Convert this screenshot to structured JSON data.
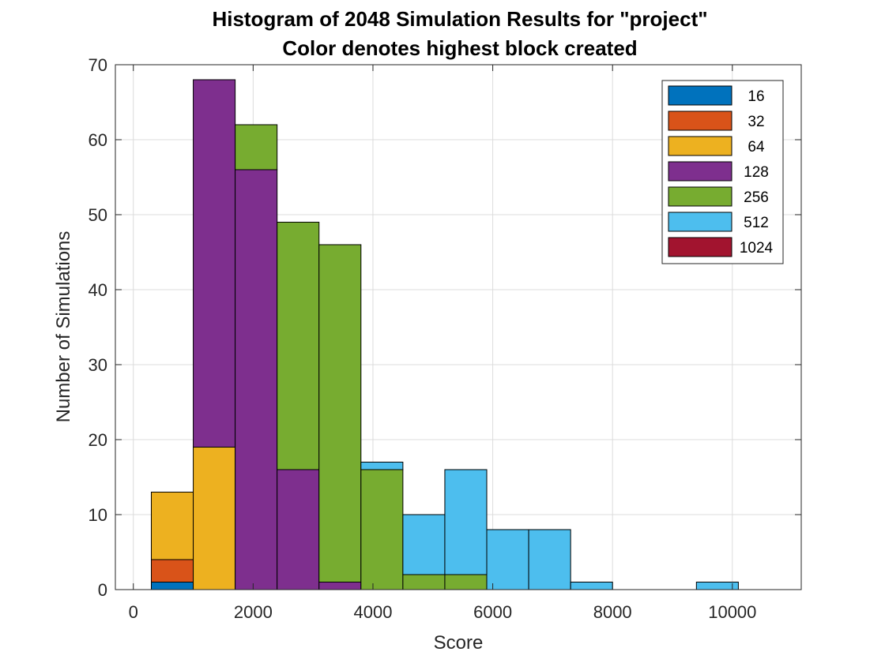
{
  "chart_data": {
    "type": "bar",
    "stacked": true,
    "title": "Histogram of 2048 Simulation Results for \"project\"",
    "subtitle": "Color denotes highest block created",
    "xlabel": "Score",
    "ylabel": "Number of Simulations",
    "xlim": [
      -300,
      11150
    ],
    "ylim": [
      0,
      70
    ],
    "xticks": [
      0,
      2000,
      4000,
      6000,
      8000,
      10000
    ],
    "yticks": [
      0,
      10,
      20,
      30,
      40,
      50,
      60,
      70
    ],
    "grid": true,
    "legend_position": "top-right",
    "bin_edges": [
      300,
      1000,
      1700,
      2400,
      3100,
      3800,
      4500,
      5200,
      5900,
      6600,
      7300,
      8000,
      8700,
      9400,
      10100
    ],
    "series": [
      {
        "name": "16",
        "color": "#0072BD",
        "values": [
          1,
          0,
          0,
          0,
          0,
          0,
          0,
          0,
          0,
          0,
          0,
          0,
          0,
          0
        ]
      },
      {
        "name": "32",
        "color": "#D95319",
        "values": [
          3,
          0,
          0,
          0,
          0,
          0,
          0,
          0,
          0,
          0,
          0,
          0,
          0,
          0
        ]
      },
      {
        "name": "64",
        "color": "#EDB120",
        "values": [
          9,
          19,
          0,
          0,
          0,
          0,
          0,
          0,
          0,
          0,
          0,
          0,
          0,
          0
        ]
      },
      {
        "name": "128",
        "color": "#7E2F8E",
        "values": [
          0,
          49,
          56,
          16,
          1,
          0,
          0,
          0,
          0,
          0,
          0,
          0,
          0,
          0
        ]
      },
      {
        "name": "256",
        "color": "#77AC30",
        "values": [
          0,
          0,
          6,
          33,
          45,
          16,
          2,
          2,
          0,
          0,
          0,
          0,
          0,
          0
        ]
      },
      {
        "name": "512",
        "color": "#4DBEEE",
        "values": [
          0,
          0,
          0,
          0,
          0,
          1,
          8,
          14,
          8,
          8,
          1,
          0,
          0,
          1
        ]
      },
      {
        "name": "1024",
        "color": "#A2142F",
        "values": [
          0,
          0,
          0,
          0,
          0,
          0,
          0,
          0,
          0,
          0,
          0,
          0,
          0,
          0
        ]
      }
    ]
  }
}
